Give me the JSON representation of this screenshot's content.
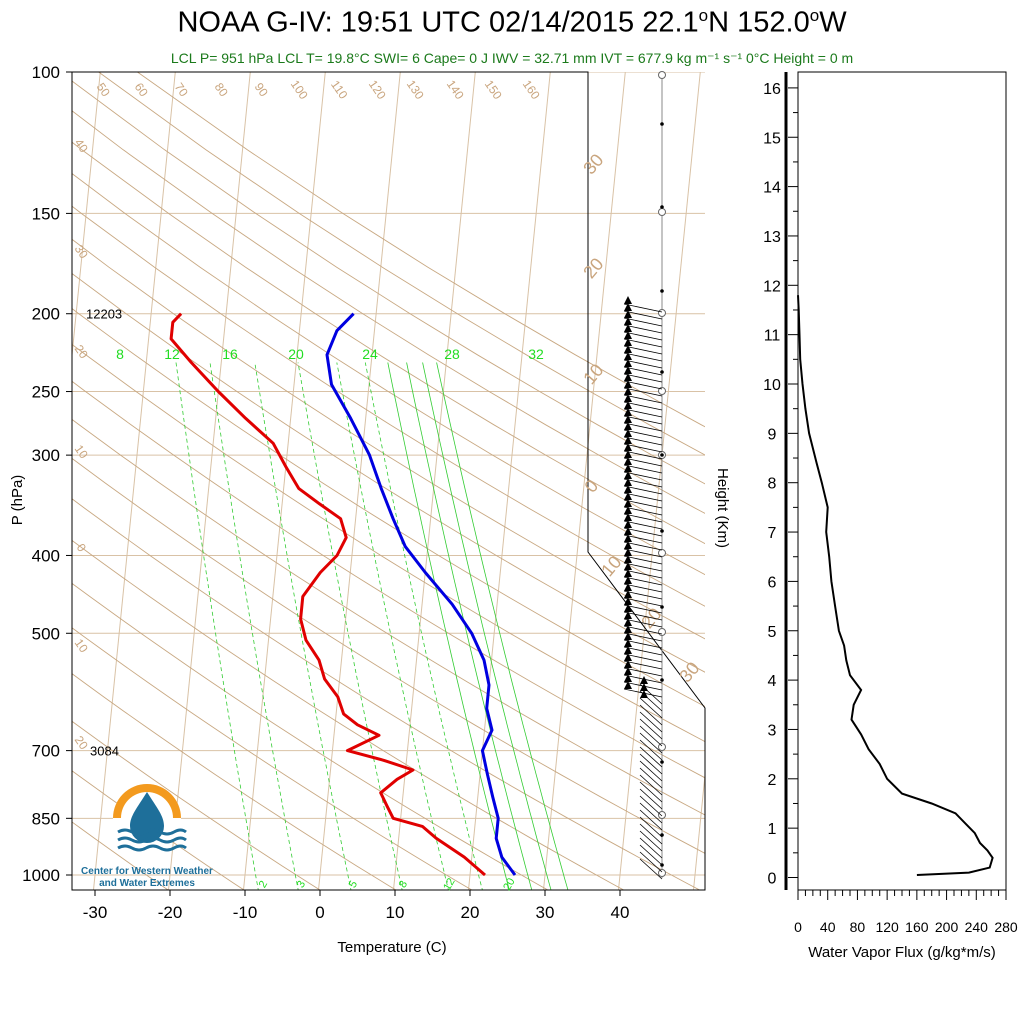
{
  "header": {
    "title_html_parts": [
      "NOAA G-IV: 19:51 UTC 02/14/2015  22.1",
      "o",
      "N 152.0",
      "o",
      "W"
    ],
    "subtitle": "LCL P= 951 hPa  LCL T= 19.8°C  SWI= 6  Cape= 0 J  IWV = 32.71 mm  IVT = 677.9 kg m⁻¹ s⁻¹  0°C Height = 0 m"
  },
  "logo": {
    "line1": "Center for Western Weather",
    "line2": "and Water Extremes"
  },
  "colors": {
    "temperature": "#e00000",
    "dewpoint_line": "#0000e0",
    "dry_adiabat": "#c8a882",
    "isotherm": "#d9c2a6",
    "mixing_ratio": "#33cc33",
    "label_green": "#22dd22",
    "label_tan": "#c9a57e",
    "logo_orange": "#f39a1e",
    "logo_blue": "#1e6f9a"
  },
  "chart_data": [
    {
      "type": "line",
      "name": "skew-t",
      "xlabel": "Temperature (C)",
      "ylabel": "P (hPa)",
      "x_ticks": [
        -30,
        -20,
        -10,
        0,
        10,
        20,
        30,
        40
      ],
      "y_ticks": [
        100,
        150,
        200,
        250,
        300,
        400,
        500,
        700,
        850,
        1000
      ],
      "xlim": [
        -34,
        46
      ],
      "ylim": [
        1050,
        100
      ],
      "y_scale": "log",
      "annotations": [
        {
          "text": "12203",
          "p": 200
        },
        {
          "text": "3084",
          "p": 700
        }
      ],
      "mixing_ratio_labels_top": [
        "8",
        "12",
        "16",
        "20",
        "24",
        "28",
        "32"
      ],
      "mixing_ratio_labels_bottom": [
        "2",
        "3",
        "5",
        "8",
        "12",
        "20"
      ],
      "dry_adiabat_labels": [
        "50",
        "60",
        "70",
        "80",
        "90",
        "100",
        "110",
        "120",
        "130",
        "140",
        "150",
        "160"
      ],
      "isotherm_labels_left": [
        "40",
        "30",
        "20",
        "10",
        "0",
        "10",
        "20"
      ],
      "isotherm_labels_right": [
        "30",
        "20",
        "10",
        "0",
        "10",
        "20",
        "30"
      ],
      "series": [
        {
          "role": "temperature",
          "points": [
            [
              22,
              1000
            ],
            [
              19,
              950
            ],
            [
              15,
              900
            ],
            [
              13,
              870
            ],
            [
              9,
              850
            ],
            [
              8,
              820
            ],
            [
              7,
              790
            ],
            [
              9,
              760
            ],
            [
              11,
              740
            ],
            [
              7,
              720
            ],
            [
              2,
              700
            ],
            [
              6,
              670
            ],
            [
              3,
              650
            ],
            [
              1,
              630
            ],
            [
              0,
              600
            ],
            [
              -2,
              570
            ],
            [
              -3,
              540
            ],
            [
              -5,
              510
            ],
            [
              -6,
              480
            ],
            [
              -6,
              450
            ],
            [
              -4,
              420
            ],
            [
              -2,
              400
            ],
            [
              -1,
              380
            ],
            [
              -2,
              360
            ],
            [
              -5,
              345
            ],
            [
              -8,
              330
            ],
            [
              -10,
              310
            ],
            [
              -12,
              290
            ],
            [
              -16,
              270
            ],
            [
              -20,
              250
            ],
            [
              -24,
              230
            ],
            [
              -27,
              215
            ],
            [
              -27,
              205
            ],
            [
              -26,
              200
            ]
          ]
        },
        {
          "role": "dewpoint",
          "points": [
            [
              26,
              1000
            ],
            [
              24,
              950
            ],
            [
              23,
              900
            ],
            [
              23,
              850
            ],
            [
              22,
              800
            ],
            [
              21,
              750
            ],
            [
              20,
              700
            ],
            [
              21,
              660
            ],
            [
              20,
              620
            ],
            [
              20,
              580
            ],
            [
              19,
              540
            ],
            [
              17,
              500
            ],
            [
              14,
              460
            ],
            [
              10,
              420
            ],
            [
              7,
              390
            ],
            [
              5,
              360
            ],
            [
              3,
              330
            ],
            [
              1,
              300
            ],
            [
              -2,
              270
            ],
            [
              -5,
              245
            ],
            [
              -6,
              225
            ],
            [
              -5,
              210
            ],
            [
              -3,
              200
            ]
          ]
        }
      ]
    },
    {
      "type": "line",
      "name": "water-vapor-flux-profile",
      "xlabel": "Water Vapor Flux (g/kg*m/s)",
      "ylabel": "Height (Km)",
      "x_tick_labels": [
        "0",
        "40",
        "80",
        "120",
        "160",
        "200",
        "240",
        "280"
      ],
      "x_ticks": [
        0,
        40,
        80,
        120,
        160,
        200,
        240,
        280
      ],
      "y_ticks": [
        0,
        1,
        2,
        3,
        4,
        5,
        6,
        7,
        8,
        9,
        10,
        11,
        12,
        13,
        14,
        15,
        16
      ],
      "xlim": [
        0,
        280
      ],
      "ylim": [
        -0.2,
        16.5
      ],
      "series": [
        {
          "role": "flux",
          "points": [
            [
              160,
              0.05
            ],
            [
              230,
              0.1
            ],
            [
              258,
              0.2
            ],
            [
              262,
              0.4
            ],
            [
              255,
              0.55
            ],
            [
              245,
              0.7
            ],
            [
              238,
              0.9
            ],
            [
              225,
              1.1
            ],
            [
              212,
              1.3
            ],
            [
              180,
              1.5
            ],
            [
              140,
              1.7
            ],
            [
              120,
              2.0
            ],
            [
              110,
              2.3
            ],
            [
              95,
              2.6
            ],
            [
              85,
              2.9
            ],
            [
              72,
              3.2
            ],
            [
              75,
              3.5
            ],
            [
              85,
              3.8
            ],
            [
              70,
              4.1
            ],
            [
              65,
              4.4
            ],
            [
              62,
              4.7
            ],
            [
              55,
              5.0
            ],
            [
              50,
              5.5
            ],
            [
              45,
              6.0
            ],
            [
              42,
              6.5
            ],
            [
              38,
              7.0
            ],
            [
              40,
              7.5
            ],
            [
              32,
              8.0
            ],
            [
              25,
              8.4
            ],
            [
              15,
              9.0
            ],
            [
              10,
              9.5
            ],
            [
              6,
              10.0
            ],
            [
              3,
              10.5
            ],
            [
              2,
              11.0
            ],
            [
              1,
              11.5
            ],
            [
              0,
              11.8
            ]
          ]
        }
      ]
    }
  ]
}
